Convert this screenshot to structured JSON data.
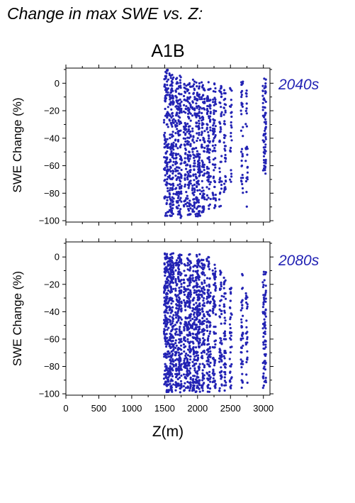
{
  "title": "Change in max SWE vs. Z:",
  "scenario": "A1B",
  "colors": {
    "points": "#2323b4",
    "period_label": "#2323b4",
    "axis": "#000000"
  },
  "chart_data": [
    {
      "type": "scatter",
      "period": "2040s",
      "xlabel": "",
      "ylabel": "SWE Change (%)",
      "xlim": [
        0,
        3100
      ],
      "ylim": [
        -101,
        11
      ],
      "yticks": [
        0,
        -20,
        -40,
        -60,
        -80,
        -100
      ],
      "ytick_labels": [
        "0",
        "−20",
        "−40",
        "−60",
        "−80",
        "−100"
      ],
      "grid": false,
      "bands": [
        {
          "x": [
            1490,
            1560
          ],
          "y": [
            -97,
            10
          ],
          "n": 120
        },
        {
          "x": [
            1570,
            1640
          ],
          "y": [
            -97,
            8
          ],
          "n": 150
        },
        {
          "x": [
            1660,
            1690
          ],
          "y": [
            -92,
            4
          ],
          "n": 60
        },
        {
          "x": [
            1700,
            1760
          ],
          "y": [
            -98,
            9
          ],
          "n": 110
        },
        {
          "x": [
            1790,
            1830
          ],
          "y": [
            -93,
            2
          ],
          "n": 60
        },
        {
          "x": [
            1840,
            1900
          ],
          "y": [
            -96,
            3
          ],
          "n": 110
        },
        {
          "x": [
            1920,
            1960
          ],
          "y": [
            -95,
            3
          ],
          "n": 70
        },
        {
          "x": [
            1970,
            2040
          ],
          "y": [
            -97,
            1
          ],
          "n": 130
        },
        {
          "x": [
            2060,
            2110
          ],
          "y": [
            -94,
            2
          ],
          "n": 80
        },
        {
          "x": [
            2140,
            2200
          ],
          "y": [
            -93,
            1
          ],
          "n": 90
        },
        {
          "x": [
            2230,
            2280
          ],
          "y": [
            -92,
            0
          ],
          "n": 70
        },
        {
          "x": [
            2330,
            2370
          ],
          "y": [
            -90,
            -2
          ],
          "n": 45
        },
        {
          "x": [
            2400,
            2430
          ],
          "y": [
            -80,
            -2
          ],
          "n": 40
        },
        {
          "x": [
            2490,
            2520
          ],
          "y": [
            -75,
            -2
          ],
          "n": 25
        },
        {
          "x": [
            2660,
            2690
          ],
          "y": [
            -80,
            2
          ],
          "n": 35
        },
        {
          "x": [
            2730,
            2760
          ],
          "y": [
            -90,
            -5
          ],
          "n": 25
        },
        {
          "x": [
            2990,
            3040
          ],
          "y": [
            -70,
            5
          ],
          "n": 70
        }
      ]
    },
    {
      "type": "scatter",
      "period": "2080s",
      "xlabel": "Z(m)",
      "ylabel": "SWE Change (%)",
      "xlim": [
        0,
        3100
      ],
      "ylim": [
        -101,
        11
      ],
      "yticks": [
        0,
        -20,
        -40,
        -60,
        -80,
        -100
      ],
      "ytick_labels": [
        "0",
        "−20",
        "−40",
        "−60",
        "−80",
        "−100"
      ],
      "xticks": [
        0,
        500,
        1000,
        1500,
        2000,
        2500,
        3000
      ],
      "xtick_labels": [
        "0",
        "500",
        "1000",
        "1500",
        "2000",
        "2500",
        "3000"
      ],
      "grid": false,
      "bands": [
        {
          "x": [
            1490,
            1560
          ],
          "y": [
            -99,
            3
          ],
          "n": 190
        },
        {
          "x": [
            1570,
            1640
          ],
          "y": [
            -99,
            3
          ],
          "n": 190
        },
        {
          "x": [
            1660,
            1690
          ],
          "y": [
            -98,
            -2
          ],
          "n": 70
        },
        {
          "x": [
            1700,
            1760
          ],
          "y": [
            -99,
            2
          ],
          "n": 150
        },
        {
          "x": [
            1790,
            1830
          ],
          "y": [
            -98,
            -5
          ],
          "n": 70
        },
        {
          "x": [
            1840,
            1900
          ],
          "y": [
            -99,
            2
          ],
          "n": 150
        },
        {
          "x": [
            1920,
            1960
          ],
          "y": [
            -98,
            -5
          ],
          "n": 80
        },
        {
          "x": [
            1970,
            2040
          ],
          "y": [
            -99,
            3
          ],
          "n": 170
        },
        {
          "x": [
            2060,
            2110
          ],
          "y": [
            -98,
            -2
          ],
          "n": 100
        },
        {
          "x": [
            2140,
            2200
          ],
          "y": [
            -99,
            0
          ],
          "n": 110
        },
        {
          "x": [
            2230,
            2280
          ],
          "y": [
            -98,
            -5
          ],
          "n": 80
        },
        {
          "x": [
            2330,
            2370
          ],
          "y": [
            -98,
            -10
          ],
          "n": 60
        },
        {
          "x": [
            2400,
            2430
          ],
          "y": [
            -98,
            -15
          ],
          "n": 50
        },
        {
          "x": [
            2490,
            2520
          ],
          "y": [
            -99,
            -20
          ],
          "n": 40
        },
        {
          "x": [
            2660,
            2690
          ],
          "y": [
            -97,
            -12
          ],
          "n": 45
        },
        {
          "x": [
            2730,
            2760
          ],
          "y": [
            -97,
            -25
          ],
          "n": 30
        },
        {
          "x": [
            2990,
            3040
          ],
          "y": [
            -96,
            -10
          ],
          "n": 80
        }
      ]
    }
  ]
}
